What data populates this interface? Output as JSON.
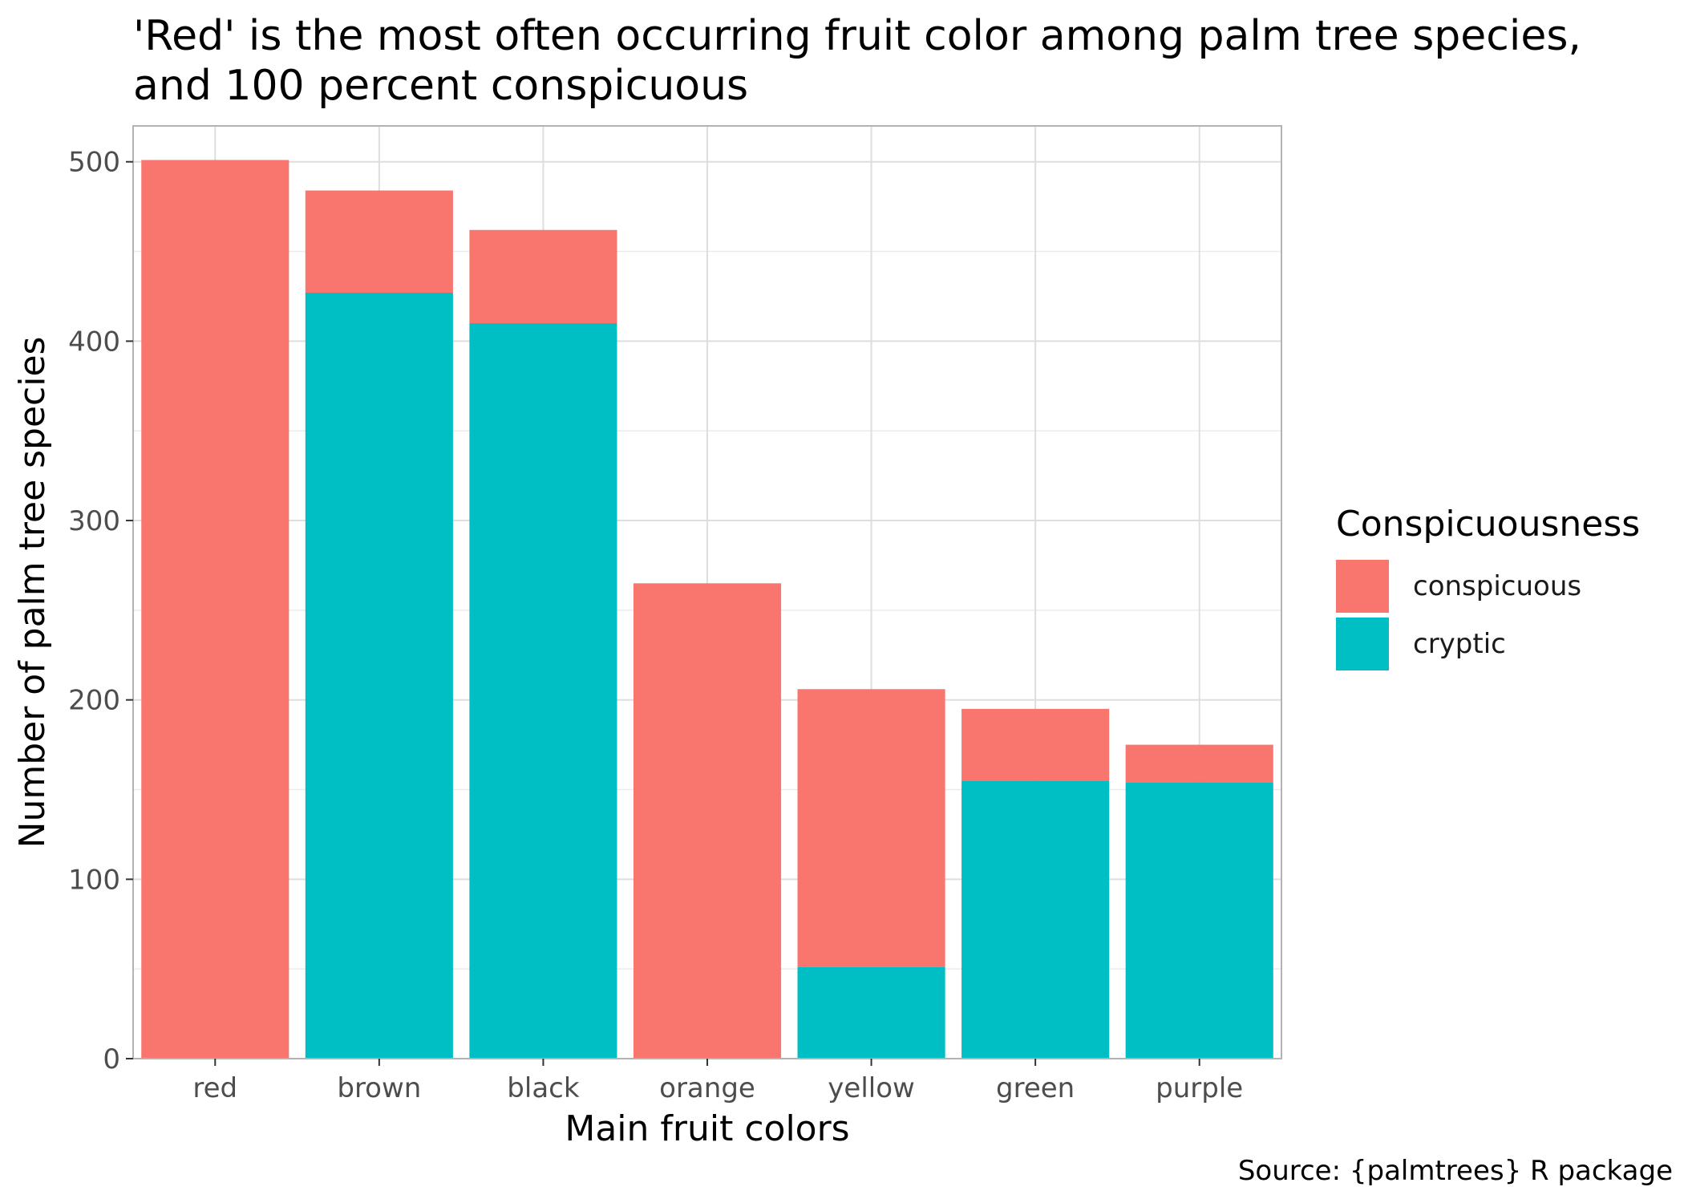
{
  "chart_data": {
    "type": "bar",
    "stacked": true,
    "title": "'Red' is the most often occurring fruit color among palm tree species,\nand 100 percent conspicuous",
    "xlabel": "Main fruit colors",
    "ylabel": "Number of palm tree species",
    "caption": "Source: {palmtrees} R package",
    "categories": [
      "red",
      "brown",
      "black",
      "orange",
      "yellow",
      "green",
      "purple"
    ],
    "series": [
      {
        "name": "conspicuous",
        "color": "#F8766D",
        "values": [
          501,
          57,
          52,
          265,
          155,
          40,
          21
        ]
      },
      {
        "name": "cryptic",
        "color": "#00BFC4",
        "values": [
          0,
          427,
          410,
          0,
          51,
          155,
          154
        ]
      }
    ],
    "ylim": [
      0,
      520
    ],
    "yticks": [
      0,
      100,
      200,
      300,
      400,
      500
    ],
    "grid": true,
    "legend": {
      "title": "Conspicuousness",
      "position": "right"
    }
  }
}
